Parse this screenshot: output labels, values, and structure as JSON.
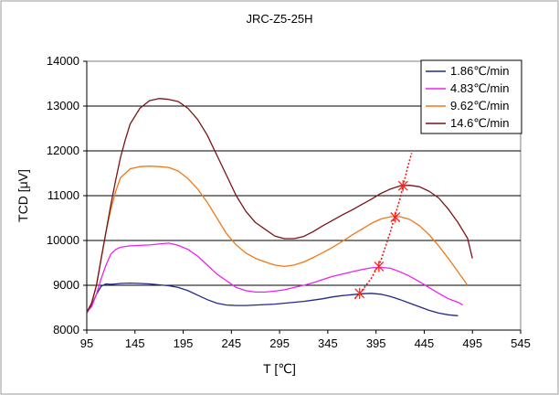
{
  "chart_data": {
    "type": "line",
    "title": "JRC-Z5-25H",
    "xlabel": "T [℃]",
    "ylabel": "TCD [μV]",
    "xlim": [
      95,
      545
    ],
    "ylim": [
      8000,
      14000
    ],
    "xticks": [
      95,
      145,
      195,
      245,
      295,
      345,
      395,
      445,
      495,
      545
    ],
    "yticks": [
      8000,
      9000,
      10000,
      11000,
      12000,
      13000,
      14000
    ],
    "ytick_labels": [
      "8000",
      "9000",
      "10000",
      "11000",
      "12000",
      "13000",
      "14000"
    ],
    "grid": "horizontal",
    "legend_position": "top-right",
    "series": [
      {
        "name": "1.86℃/min",
        "color": "#1f2a8c",
        "x": [
          95,
          100,
          105,
          110,
          115,
          120,
          130,
          140,
          150,
          160,
          170,
          180,
          190,
          200,
          210,
          220,
          230,
          240,
          250,
          260,
          270,
          280,
          290,
          300,
          310,
          320,
          330,
          340,
          350,
          360,
          370,
          380,
          390,
          400,
          410,
          420,
          430,
          440,
          450,
          460,
          470,
          480
        ],
        "y": [
          8380,
          8550,
          8800,
          8980,
          9030,
          9020,
          9040,
          9050,
          9040,
          9030,
          9010,
          8990,
          8950,
          8880,
          8780,
          8680,
          8600,
          8560,
          8550,
          8550,
          8560,
          8570,
          8580,
          8600,
          8620,
          8640,
          8670,
          8700,
          8740,
          8770,
          8790,
          8810,
          8820,
          8800,
          8750,
          8680,
          8600,
          8520,
          8440,
          8380,
          8340,
          8320
        ]
      },
      {
        "name": "4.83℃/min",
        "color": "#ee22ee",
        "x": [
          95,
          100,
          105,
          110,
          115,
          120,
          125,
          130,
          140,
          150,
          160,
          170,
          180,
          190,
          200,
          210,
          220,
          230,
          240,
          250,
          260,
          270,
          280,
          290,
          300,
          310,
          320,
          330,
          340,
          350,
          360,
          370,
          380,
          390,
          400,
          410,
          420,
          430,
          440,
          450,
          460,
          470,
          480,
          485
        ],
        "y": [
          8400,
          8520,
          8800,
          9150,
          9450,
          9700,
          9800,
          9850,
          9880,
          9890,
          9900,
          9920,
          9940,
          9890,
          9800,
          9650,
          9450,
          9250,
          9100,
          8950,
          8880,
          8850,
          8850,
          8870,
          8900,
          8950,
          9000,
          9060,
          9130,
          9200,
          9250,
          9300,
          9350,
          9390,
          9400,
          9380,
          9300,
          9200,
          9080,
          8950,
          8820,
          8700,
          8620,
          8560
        ]
      },
      {
        "name": "9.62℃/min",
        "color": "#f07818",
        "x": [
          95,
          100,
          105,
          110,
          115,
          120,
          125,
          130,
          140,
          150,
          160,
          170,
          180,
          190,
          200,
          210,
          220,
          230,
          240,
          250,
          260,
          270,
          280,
          290,
          300,
          310,
          320,
          330,
          340,
          350,
          360,
          370,
          380,
          390,
          400,
          410,
          420,
          430,
          440,
          450,
          460,
          470,
          480,
          490
        ],
        "y": [
          8400,
          8600,
          9000,
          9600,
          10200,
          10700,
          11100,
          11400,
          11600,
          11650,
          11660,
          11650,
          11630,
          11550,
          11380,
          11150,
          10850,
          10500,
          10150,
          9900,
          9720,
          9600,
          9520,
          9450,
          9420,
          9450,
          9520,
          9620,
          9730,
          9850,
          9980,
          10120,
          10250,
          10380,
          10480,
          10530,
          10530,
          10470,
          10330,
          10130,
          9880,
          9600,
          9300,
          9000
        ]
      },
      {
        "name": "14.6℃/min",
        "color": "#7a1414",
        "x": [
          95,
          100,
          105,
          110,
          115,
          120,
          125,
          130,
          135,
          140,
          150,
          160,
          170,
          180,
          190,
          200,
          210,
          220,
          230,
          240,
          250,
          260,
          270,
          280,
          290,
          300,
          310,
          320,
          330,
          340,
          350,
          360,
          370,
          380,
          390,
          400,
          410,
          420,
          430,
          440,
          450,
          460,
          470,
          480,
          490,
          495
        ],
        "y": [
          8400,
          8600,
          9000,
          9600,
          10200,
          10800,
          11350,
          11850,
          12250,
          12600,
          12950,
          13120,
          13170,
          13150,
          13100,
          12950,
          12700,
          12350,
          11900,
          11450,
          11000,
          10650,
          10400,
          10250,
          10100,
          10040,
          10040,
          10090,
          10200,
          10330,
          10450,
          10570,
          10680,
          10800,
          10920,
          11050,
          11150,
          11220,
          11230,
          11200,
          11100,
          10950,
          10700,
          10400,
          10050,
          9600
        ]
      }
    ],
    "peak_markers": {
      "color": "#ff2020",
      "x": [
        378,
        398,
        415,
        423
      ],
      "y": [
        8820,
        9420,
        10520,
        11220
      ]
    },
    "peak_trend": {
      "color": "#e81818",
      "x": [
        373,
        380,
        390,
        400,
        410,
        420,
        428,
        432
      ],
      "y": [
        8700,
        8870,
        9150,
        9550,
        10200,
        10950,
        11650,
        11950
      ]
    }
  }
}
